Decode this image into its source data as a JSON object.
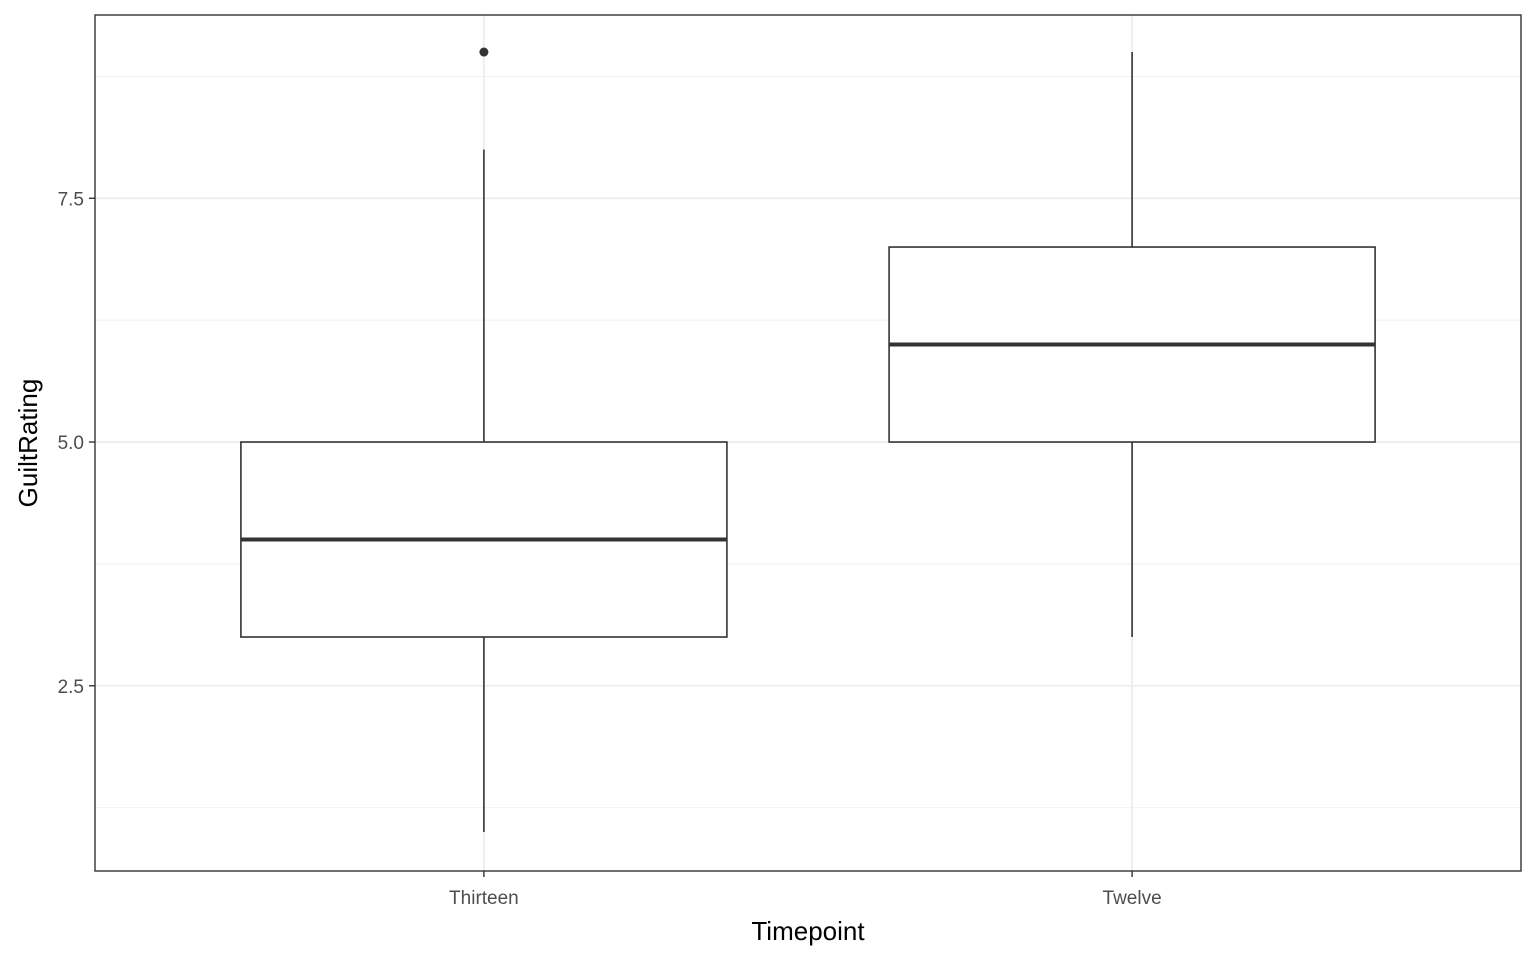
{
  "chart_data": {
    "type": "box",
    "xlabel": "Timepoint",
    "ylabel": "GuiltRating",
    "categories": [
      "Thirteen",
      "Twelve"
    ],
    "boxes": [
      {
        "category": "Thirteen",
        "whisker_low": 1,
        "q1": 3,
        "median": 4,
        "q3": 5,
        "whisker_high": 8,
        "outliers": [
          9
        ]
      },
      {
        "category": "Twelve",
        "whisker_low": 3,
        "q1": 5,
        "median": 6,
        "q3": 7,
        "whisker_high": 9,
        "outliers": []
      }
    ],
    "y_ticks": [
      2.5,
      5.0,
      7.5
    ],
    "y_tick_labels": [
      "2.5",
      "5.0",
      "7.5"
    ],
    "ylim": [
      0.6,
      9.38
    ],
    "grid": true,
    "colors": {
      "box_stroke": "#333333",
      "box_fill": "#ffffff",
      "grid_major": "#ebebeb",
      "grid_minor": "#f2f2f2",
      "panel_border": "#333333",
      "tick_text": "#4d4d4d",
      "title_text": "#000000"
    }
  }
}
